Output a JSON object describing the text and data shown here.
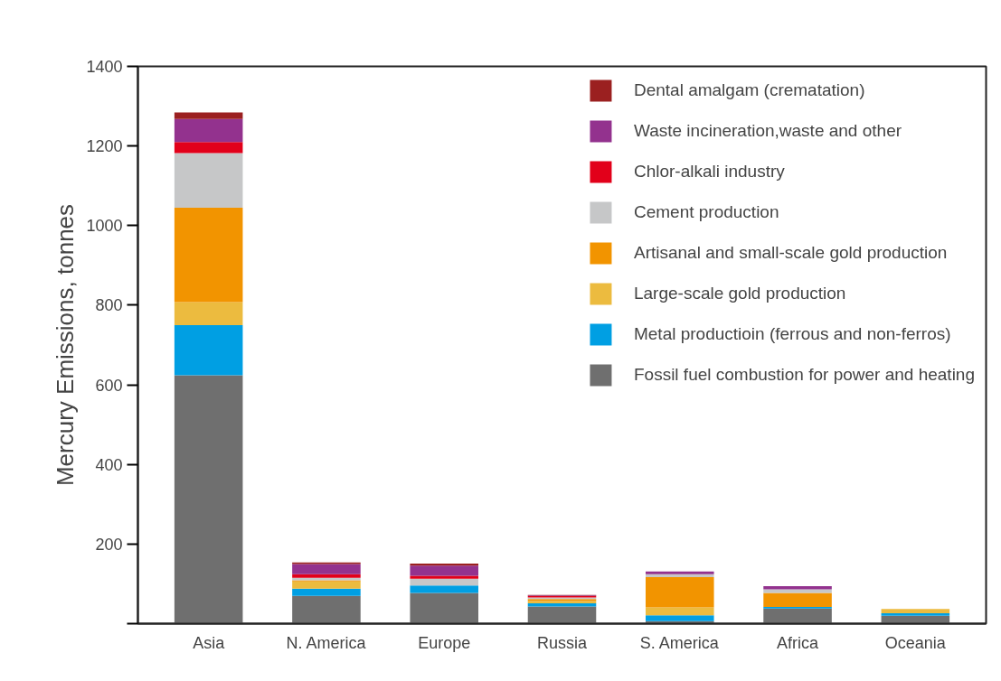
{
  "chart_data": {
    "type": "bar",
    "stacked": true,
    "ylabel": "Mercury Emissions, tonnes",
    "categories": [
      "Asia",
      "N. America",
      "Europe",
      "Russia",
      "S. America",
      "Africa",
      "Oceania"
    ],
    "series": [
      {
        "name": "Fossil fuel combustion for power and heating",
        "color": "#6f6f6f",
        "values": [
          624,
          70,
          77,
          43,
          6,
          38,
          20
        ]
      },
      {
        "name": "Metal productioin (ferrous and non-ferros)",
        "color": "#009fe3",
        "values": [
          126,
          18,
          19,
          8,
          15,
          4,
          6
        ]
      },
      {
        "name": "Large-scale gold production",
        "color": "#ecbb3f",
        "values": [
          58,
          18,
          0,
          6,
          20,
          null,
          11
        ]
      },
      {
        "name": "Artisanal and small-scale gold production",
        "color": "#f29400",
        "values": [
          237,
          3,
          0,
          5,
          76,
          35,
          0
        ]
      },
      {
        "name": "Cement production",
        "color": "#c6c7c8",
        "values": [
          137,
          6,
          17,
          4,
          7,
          9,
          0
        ]
      },
      {
        "name": "Chlor-alkali industry",
        "color": "#e2001a",
        "values": [
          28,
          9,
          7,
          3,
          0,
          0,
          0
        ]
      },
      {
        "name": "Waste incineration,waste and other",
        "color": "#93328e",
        "values": [
          58,
          26,
          26,
          2,
          7,
          8,
          0
        ]
      },
      {
        "name": "Dental amalgam (crematation)",
        "color": "#9b2020",
        "values": [
          16,
          4,
          5,
          1,
          0,
          0,
          0
        ]
      }
    ],
    "ylim": [
      0,
      1400
    ],
    "yticks": [
      {
        "value": 0,
        "label": null
      },
      200,
      400,
      600,
      800,
      1000,
      1200,
      1400
    ],
    "grid": false,
    "legend": "top right"
  }
}
